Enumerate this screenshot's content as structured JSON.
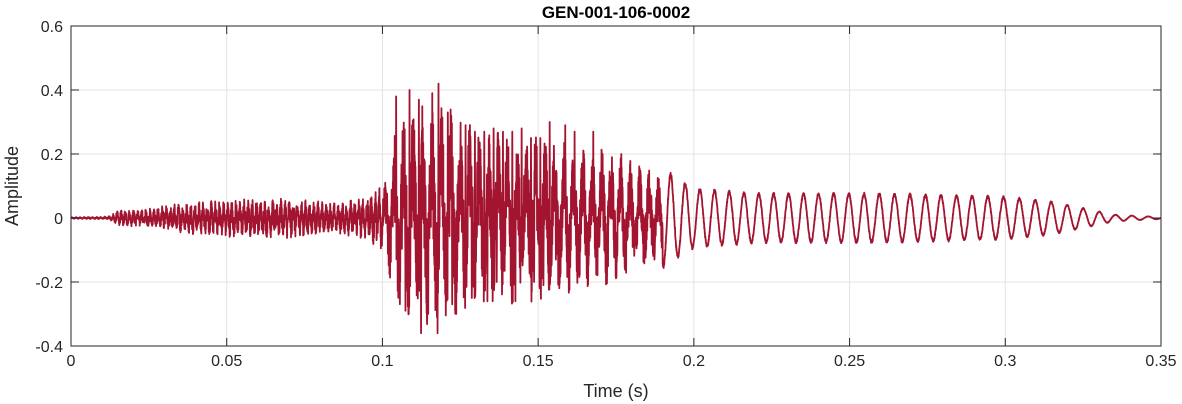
{
  "chart_data": {
    "type": "line",
    "title": "GEN-001-106-0002",
    "xlabel": "Time (s)",
    "ylabel": "Amplitude",
    "xlim": [
      0,
      0.35
    ],
    "ylim": [
      -0.4,
      0.6
    ],
    "xticks": [
      0,
      0.05,
      0.1,
      0.15,
      0.2,
      0.25,
      0.3,
      0.35
    ],
    "xtick_labels": [
      "0",
      "0.05",
      "0.1",
      "0.15",
      "0.2",
      "0.25",
      "0.3",
      "0.35"
    ],
    "yticks": [
      -0.4,
      -0.2,
      0,
      0.2,
      0.4,
      0.6
    ],
    "ytick_labels": [
      "-0.4",
      "-0.2",
      "0",
      "0.2",
      "0.4",
      "0.6"
    ],
    "grid": true,
    "box": true,
    "line_color": "#a2142f",
    "grid_color": "#e3e3e3",
    "axis_color": "#262626",
    "sample_rate_hz": 20000,
    "envelope_points": [
      [
        0,
        0.002
      ],
      [
        0.012,
        0.004
      ],
      [
        0.015,
        0.02
      ],
      [
        0.025,
        0.025
      ],
      [
        0.035,
        0.04
      ],
      [
        0.05,
        0.05
      ],
      [
        0.07,
        0.055
      ],
      [
        0.085,
        0.04
      ],
      [
        0.095,
        0.06
      ],
      [
        0.1,
        0.1
      ],
      [
        0.105,
        0.35
      ],
      [
        0.11,
        0.4
      ],
      [
        0.12,
        0.4
      ],
      [
        0.13,
        0.32
      ],
      [
        0.15,
        0.3
      ],
      [
        0.17,
        0.25
      ],
      [
        0.19,
        0.15
      ],
      [
        0.2,
        0.09
      ],
      [
        0.22,
        0.075
      ],
      [
        0.26,
        0.075
      ],
      [
        0.3,
        0.065
      ],
      [
        0.315,
        0.05
      ],
      [
        0.325,
        0.03
      ],
      [
        0.335,
        0.01
      ],
      [
        0.35,
        0.003
      ]
    ],
    "peaks": [
      {
        "t": 0.1044,
        "v": 0.38
      },
      {
        "t": 0.1057,
        "v": -0.2
      },
      {
        "t": 0.1074,
        "v": -0.29
      },
      {
        "t": 0.1087,
        "v": 0.4
      },
      {
        "t": 0.1117,
        "v": 0.37
      },
      {
        "t": 0.1124,
        "v": -0.36
      },
      {
        "t": 0.1147,
        "v": -0.3
      },
      {
        "t": 0.116,
        "v": 0.39
      },
      {
        "t": 0.1177,
        "v": -0.36
      },
      {
        "t": 0.118,
        "v": 0.42
      },
      {
        "t": 0.121,
        "v": 0.33
      },
      {
        "t": 0.1224,
        "v": -0.27
      },
      {
        "t": 0.1237,
        "v": -0.3
      },
      {
        "t": 0.1267,
        "v": 0.29
      },
      {
        "t": 0.1287,
        "v": -0.25
      },
      {
        "t": 0.1297,
        "v": 0.27
      },
      {
        "t": 0.1327,
        "v": 0.27
      },
      {
        "t": 0.1337,
        "v": -0.26
      },
      {
        "t": 0.1357,
        "v": 0.28
      },
      {
        "t": 0.1367,
        "v": -0.2
      },
      {
        "t": 0.1387,
        "v": 0.27
      },
      {
        "t": 0.1417,
        "v": 0.27
      },
      {
        "t": 0.1427,
        "v": -0.26
      },
      {
        "t": 0.1447,
        "v": 0.28
      },
      {
        "t": 0.1477,
        "v": 0.25
      },
      {
        "t": 0.1487,
        "v": -0.2
      },
      {
        "t": 0.1507,
        "v": 0.25
      },
      {
        "t": 0.1517,
        "v": -0.21
      },
      {
        "t": 0.1537,
        "v": 0.3
      },
      {
        "t": 0.1557,
        "v": -0.13
      },
      {
        "t": 0.1587,
        "v": 0.29
      },
      {
        "t": 0.1617,
        "v": 0.27
      },
      {
        "t": 0.1647,
        "v": 0.2
      },
      {
        "t": 0.1677,
        "v": 0.27
      },
      {
        "t": 0.1707,
        "v": 0.2
      },
      {
        "t": 0.1737,
        "v": 0.19
      },
      {
        "t": 0.1767,
        "v": 0.2
      },
      {
        "t": 0.1797,
        "v": 0.14
      }
    ]
  }
}
